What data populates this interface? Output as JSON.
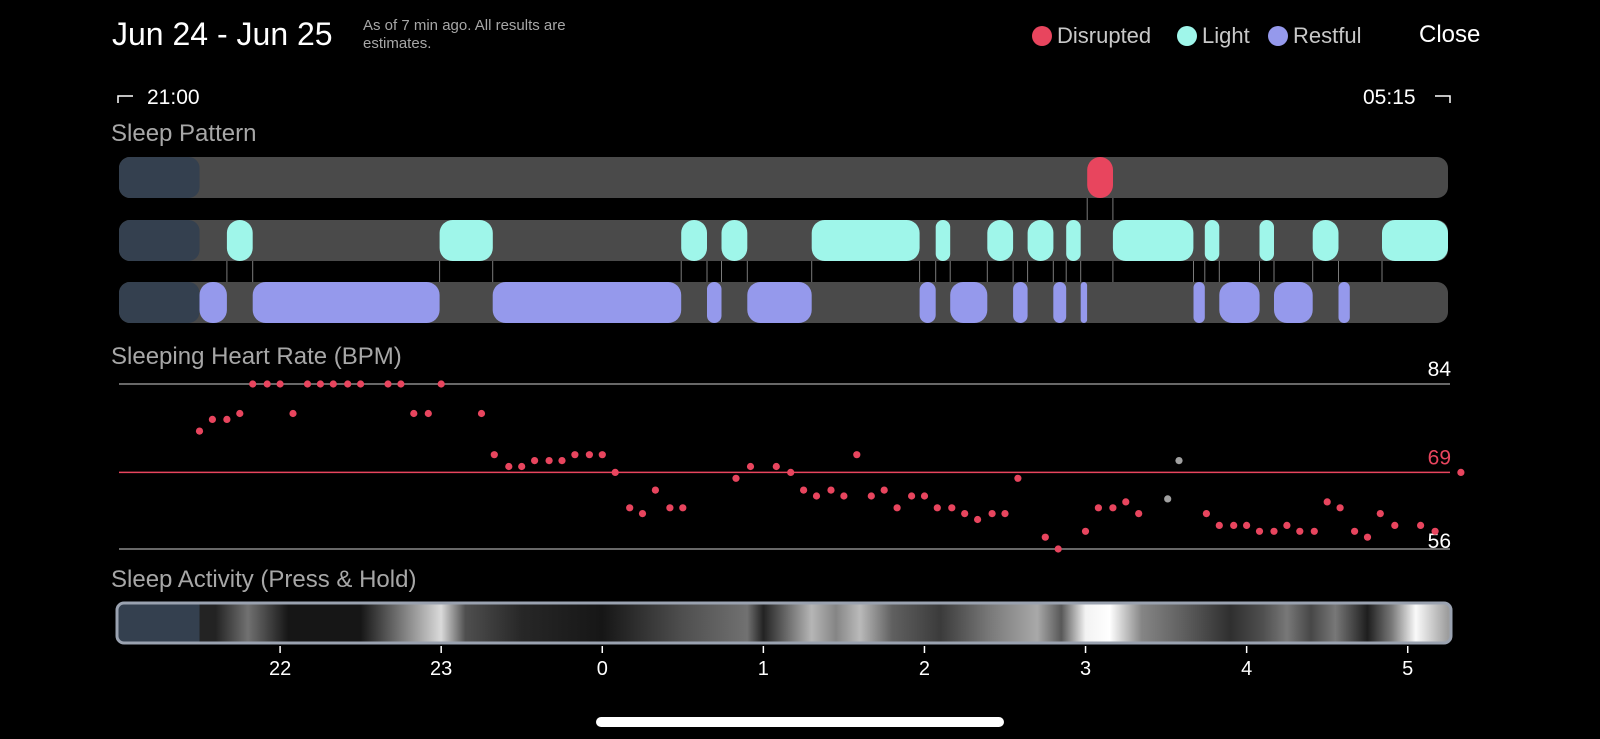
{
  "header": {
    "title": "Jun 24 - Jun 25",
    "subtitle": "As of 7 min ago. All results are estimates.",
    "legend": [
      {
        "label": "Disrupted",
        "color": "#e8455e"
      },
      {
        "label": "Light",
        "color": "#9ff6ea"
      },
      {
        "label": "Restful",
        "color": "#9599ec"
      }
    ],
    "close_label": "Close"
  },
  "time_range": {
    "start": "21:00",
    "end": "05:15"
  },
  "colors": {
    "disrupted": "#e8455e",
    "light": "#9ff6ea",
    "restful": "#9599ec",
    "track": "#4a4a4a",
    "pre_sleep": "#34404f",
    "gray_point": "#a0a0a0"
  },
  "sleep_pattern": {
    "title": "Sleep Pattern",
    "axis_hours": [
      21.0,
      29.25
    ],
    "disrupted": [
      [
        27.01,
        27.17
      ]
    ],
    "light": [
      [
        21.67,
        21.83
      ],
      [
        22.99,
        23.32
      ],
      [
        24.49,
        24.65
      ],
      [
        24.74,
        24.9
      ],
      [
        25.3,
        25.97
      ],
      [
        26.07,
        26.16
      ],
      [
        26.39,
        26.55
      ],
      [
        26.64,
        26.8
      ],
      [
        26.88,
        26.97
      ],
      [
        27.17,
        27.67
      ],
      [
        27.74,
        27.83
      ],
      [
        28.08,
        28.17
      ],
      [
        28.41,
        28.57
      ],
      [
        28.84,
        29.25
      ]
    ],
    "restful": [
      [
        21.5,
        21.67
      ],
      [
        21.83,
        22.99
      ],
      [
        23.32,
        24.49
      ],
      [
        24.65,
        24.74
      ],
      [
        24.9,
        25.3
      ],
      [
        25.97,
        26.07
      ],
      [
        26.16,
        26.39
      ],
      [
        26.55,
        26.64
      ],
      [
        26.8,
        26.88
      ],
      [
        26.97,
        27.01
      ],
      [
        27.67,
        27.74
      ],
      [
        27.83,
        28.08
      ],
      [
        28.17,
        28.41
      ],
      [
        28.57,
        28.64
      ]
    ],
    "pre_sleep_end": 21.5
  },
  "heart_rate": {
    "title": "Sleeping Heart Rate (BPM)",
    "y_top_label": "84",
    "y_mid_label": "69",
    "y_bottom_label": "56",
    "points": [
      [
        21.5,
        76
      ],
      [
        21.58,
        78
      ],
      [
        21.67,
        78
      ],
      [
        21.75,
        79
      ],
      [
        21.83,
        84
      ],
      [
        21.92,
        84
      ],
      [
        22.0,
        84
      ],
      [
        22.08,
        79
      ],
      [
        22.17,
        84
      ],
      [
        22.25,
        84
      ],
      [
        22.33,
        84
      ],
      [
        22.42,
        84
      ],
      [
        22.5,
        84
      ],
      [
        22.67,
        84
      ],
      [
        22.75,
        84
      ],
      [
        22.83,
        79
      ],
      [
        22.92,
        79
      ],
      [
        23.0,
        84
      ],
      [
        23.25,
        79
      ],
      [
        23.33,
        72
      ],
      [
        23.42,
        70
      ],
      [
        23.5,
        70
      ],
      [
        23.58,
        71
      ],
      [
        23.67,
        71
      ],
      [
        23.75,
        71
      ],
      [
        23.83,
        72
      ],
      [
        23.92,
        72
      ],
      [
        24.0,
        72
      ],
      [
        24.08,
        69
      ],
      [
        24.17,
        63
      ],
      [
        24.25,
        62
      ],
      [
        24.33,
        66
      ],
      [
        24.42,
        63
      ],
      [
        24.5,
        63
      ],
      [
        24.83,
        68
      ],
      [
        24.92,
        70
      ],
      [
        25.08,
        70
      ],
      [
        25.17,
        69
      ],
      [
        25.25,
        66
      ],
      [
        25.33,
        65
      ],
      [
        25.42,
        66
      ],
      [
        25.5,
        65
      ],
      [
        25.58,
        72
      ],
      [
        25.67,
        65
      ],
      [
        25.75,
        66
      ],
      [
        25.83,
        63
      ],
      [
        25.92,
        65
      ],
      [
        26.0,
        65
      ],
      [
        26.08,
        63
      ],
      [
        26.17,
        63
      ],
      [
        26.25,
        62
      ],
      [
        26.33,
        61
      ],
      [
        26.42,
        62
      ],
      [
        26.5,
        62
      ],
      [
        26.58,
        68
      ],
      [
        26.75,
        58
      ],
      [
        26.83,
        56
      ],
      [
        27.0,
        59
      ],
      [
        27.08,
        63
      ],
      [
        27.17,
        63
      ],
      [
        27.25,
        64
      ],
      [
        27.33,
        62
      ],
      [
        27.75,
        62
      ],
      [
        27.83,
        60
      ],
      [
        27.92,
        60
      ],
      [
        28.0,
        60
      ],
      [
        28.08,
        59
      ],
      [
        28.17,
        59
      ],
      [
        28.25,
        60
      ],
      [
        28.33,
        59
      ],
      [
        28.42,
        59
      ],
      [
        28.5,
        64
      ],
      [
        28.58,
        63
      ],
      [
        28.67,
        59
      ],
      [
        28.75,
        58
      ],
      [
        28.83,
        62
      ],
      [
        28.92,
        60
      ],
      [
        29.08,
        60
      ],
      [
        29.17,
        59
      ],
      [
        29.33,
        69
      ]
    ],
    "gray_points": [
      [
        27.51,
        64.5
      ],
      [
        27.58,
        71
      ]
    ]
  },
  "sleep_activity": {
    "title": "Sleep Activity (Press & Hold)",
    "pre_sleep_end": 21.5,
    "intensity": [
      [
        21.6,
        0.1
      ],
      [
        21.8,
        0.42
      ],
      [
        22.05,
        0.05
      ],
      [
        22.5,
        0.05
      ],
      [
        23.0,
        0.85
      ],
      [
        23.15,
        0.28
      ],
      [
        23.5,
        0.12
      ],
      [
        24.0,
        0.05
      ],
      [
        24.5,
        0.28
      ],
      [
        24.9,
        0.42
      ],
      [
        25.0,
        0.1
      ],
      [
        25.3,
        0.7
      ],
      [
        25.45,
        0.5
      ],
      [
        25.6,
        0.72
      ],
      [
        25.8,
        0.35
      ],
      [
        26.1,
        0.2
      ],
      [
        26.4,
        0.45
      ],
      [
        26.7,
        0.65
      ],
      [
        26.85,
        0.32
      ],
      [
        27.0,
        0.95
      ],
      [
        27.15,
        1.0
      ],
      [
        27.35,
        0.5
      ],
      [
        27.6,
        0.35
      ],
      [
        27.9,
        0.15
      ],
      [
        28.1,
        0.28
      ],
      [
        28.25,
        0.45
      ],
      [
        28.4,
        0.25
      ],
      [
        28.55,
        0.45
      ],
      [
        28.75,
        0.08
      ],
      [
        28.9,
        0.45
      ],
      [
        29.05,
        0.98
      ],
      [
        29.25,
        0.6
      ]
    ]
  },
  "x_axis": {
    "ticks": [
      {
        "hour": 22,
        "label": "22"
      },
      {
        "hour": 23,
        "label": "23"
      },
      {
        "hour": 24,
        "label": "0"
      },
      {
        "hour": 25,
        "label": "1"
      },
      {
        "hour": 26,
        "label": "2"
      },
      {
        "hour": 27,
        "label": "3"
      },
      {
        "hour": 28,
        "label": "4"
      },
      {
        "hour": 29,
        "label": "5"
      }
    ]
  }
}
